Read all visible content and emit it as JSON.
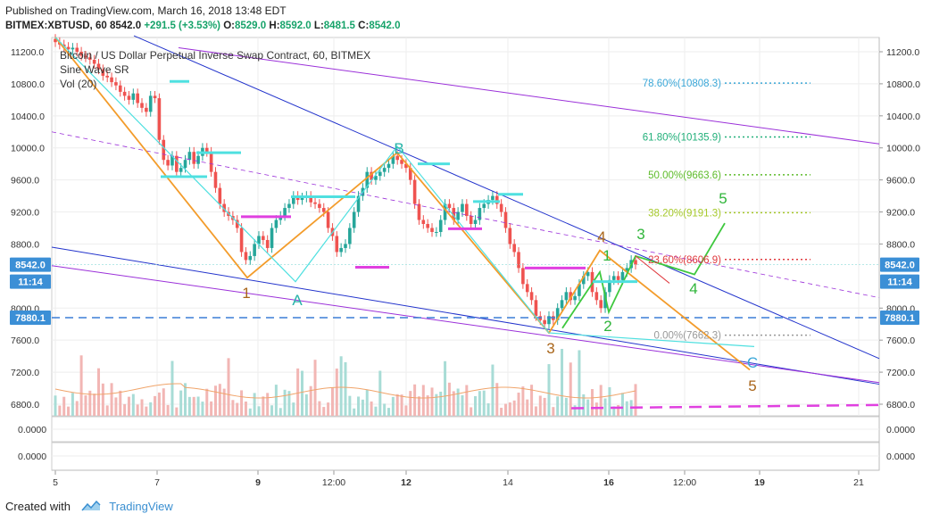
{
  "header": {
    "published": "Published on TradingView.com, March 16, 2018 13:48 EDT",
    "symbol_line": "BITMEX:XBTUSD, 60",
    "price": "8542.0",
    "change": "+291.5 (+3.53%)",
    "o_label": "O:",
    "o": "8529.0",
    "h_label": "H:",
    "h": "8592.0",
    "l_label": "L:",
    "l": "8481.5",
    "c_label": "C:",
    "c": "8542.0"
  },
  "legend": {
    "title": "Bitcoin / US Dollar Perpetual Inverse Swap Contract, 60, BITMEX",
    "indicator": "Sine Wave SR",
    "volume": "Vol (20)"
  },
  "footer": {
    "created_with": "Created with",
    "brand": "TradingView"
  },
  "colors": {
    "up": "#26a69a",
    "down": "#ef5350",
    "blue": "#2233cc",
    "purple": "#9b30d9",
    "orange": "#f39c2b",
    "cyan": "#4fe0e0",
    "magenta": "#e040e0",
    "green": "#3ec83e"
  },
  "chart_data": {
    "type": "candlestick",
    "title": "BITMEX:XBTUSD, 60",
    "y_ticks": [
      "11200.0",
      "10800.0",
      "10400.0",
      "10000.0",
      "9600.0",
      "9200.0",
      "8800.0",
      "8000.0",
      "7600.0",
      "7200.0",
      "6800.0"
    ],
    "y_values": [
      11200,
      10800,
      10400,
      10000,
      9600,
      9200,
      8800,
      8000,
      7600,
      7200,
      6800
    ],
    "ylim": [
      6650,
      11400
    ],
    "x_ticks": [
      "5",
      "7",
      "9",
      "12:00",
      "12",
      "14",
      "16",
      "12:00",
      "19",
      "21"
    ],
    "price_tags": [
      {
        "label": "8542.0",
        "value": 8542,
        "color": "#3b8fd6"
      },
      {
        "label": "11:14",
        "value": 8330,
        "color": "#3b8fd6"
      },
      {
        "label": "7880.1",
        "value": 7880.1,
        "color": "#3b8fd6"
      }
    ],
    "sub_pane_ticks": [
      "0.0000",
      "0.0000"
    ],
    "fib_levels": [
      {
        "label": "78.60%(10808.3)",
        "value": 10808.3,
        "color": "#3aa7d8"
      },
      {
        "label": "61.80%(10135.9)",
        "value": 10135.9,
        "color": "#22b07a"
      },
      {
        "label": "50.00%(9663.6)",
        "value": 9663.6,
        "color": "#5dbb2a"
      },
      {
        "label": "38.20%(9191.3)",
        "value": 9191.3,
        "color": "#a6c92a"
      },
      {
        "label": "23.60%(8606.9)",
        "value": 8606.9,
        "color": "#e0393e"
      },
      {
        "label": "0.00%(7662.3)",
        "value": 7662.3,
        "color": "#999999"
      }
    ],
    "wave_labels": [
      {
        "label": "1",
        "color": "#a9651a"
      },
      {
        "label": "A",
        "color": "#26b3a8"
      },
      {
        "label": "B",
        "color": "#26b3a8"
      },
      {
        "label": "3",
        "color": "#a9651a"
      },
      {
        "label": "4",
        "color": "#a9651a"
      },
      {
        "label": "5",
        "color": "#a9651a"
      },
      {
        "label": "C",
        "color": "#3aa7d8"
      },
      {
        "label": "1",
        "color": "#2fb53a"
      },
      {
        "label": "2",
        "color": "#2fb53a"
      },
      {
        "label": "3",
        "color": "#2fb53a"
      },
      {
        "label": "4",
        "color": "#2fb53a"
      },
      {
        "label": "5",
        "color": "#2fb53a"
      }
    ],
    "closes": [
      11320,
      11290,
      11260,
      11230,
      11250,
      11200,
      11150,
      11130,
      11100,
      11050,
      10980,
      10900,
      10880,
      10820,
      10780,
      10700,
      10650,
      10600,
      10680,
      10560,
      10500,
      10450,
      10650,
      10620,
      10100,
      9850,
      9780,
      9900,
      9700,
      9750,
      9850,
      9950,
      9800,
      9900,
      10000,
      9950,
      9700,
      9500,
      9300,
      9200,
      9150,
      9100,
      9000,
      8700,
      8600,
      8650,
      8800,
      8900,
      8850,
      8750,
      9000,
      9100,
      9150,
      9250,
      9300,
      9400,
      9350,
      9380,
      9400,
      9320,
      9300,
      9250,
      9200,
      9000,
      8900,
      8700,
      8750,
      8800,
      9000,
      9200,
      9400,
      9500,
      9700,
      9600,
      9650,
      9700,
      9750,
      9800,
      9900,
      9850,
      9800,
      9750,
      9600,
      9300,
      9100,
      9050,
      9000,
      8950,
      8950,
      9100,
      9300,
      9250,
      9100,
      9200,
      9300,
      9150,
      9050,
      9100,
      9250,
      9300,
      9350,
      9400,
      9300,
      9200,
      9000,
      8800,
      8700,
      8500,
      8300,
      8200,
      8100,
      7900,
      7850,
      7800,
      7900,
      7850,
      8000,
      8100,
      8200,
      8100,
      8150,
      8300,
      8400,
      8450,
      8200,
      8100,
      8000,
      8200,
      8350,
      8400,
      8350,
      8450,
      8500,
      8600,
      8542
    ]
  }
}
